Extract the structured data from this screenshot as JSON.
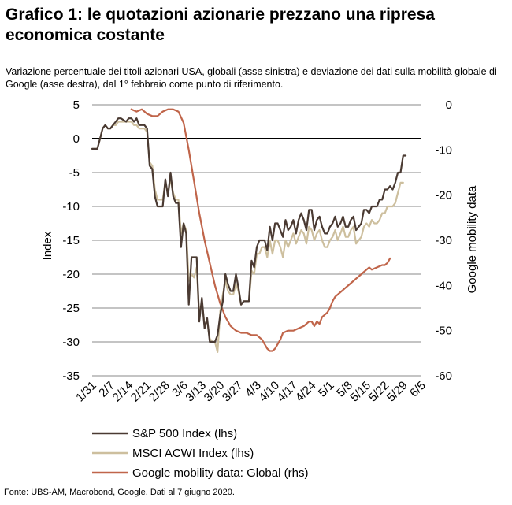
{
  "title": "Grafico 1: le quotazioni azionarie prezzano una ripresa economica costante",
  "subtitle": "Variazione percentuale dei titoli azionari USA, globali (asse sinistra) e deviazione dei dati sulla mobilità globale di Google (asse destra), dal 1° febbraio come punto di riferimento.",
  "source": "Fonte: UBS-AM, Macrobond, Google. Dati al 7 giugno 2020.",
  "chart_data": {
    "type": "line",
    "ylabel": "Index",
    "y2label": "Google mobility data",
    "ylim": [
      -35,
      5
    ],
    "y2lim": [
      -60,
      0
    ],
    "yticks": [
      "5",
      "0",
      "-5",
      "-10",
      "-15",
      "-20",
      "-25",
      "-30",
      "-35"
    ],
    "y2ticks": [
      "0",
      "-10",
      "-20",
      "-30",
      "-40",
      "-50",
      "-60"
    ],
    "xlim": [
      0,
      126
    ],
    "xticks": [
      {
        "label": "1/31",
        "day": 0
      },
      {
        "label": "2/7",
        "day": 7
      },
      {
        "label": "2/14",
        "day": 14
      },
      {
        "label": "2/21",
        "day": 21
      },
      {
        "label": "2/28",
        "day": 28
      },
      {
        "label": "3/6",
        "day": 35
      },
      {
        "label": "3/13",
        "day": 42
      },
      {
        "label": "3/20",
        "day": 49
      },
      {
        "label": "3/27",
        "day": 56
      },
      {
        "label": "4/3",
        "day": 63
      },
      {
        "label": "4/10",
        "day": 70
      },
      {
        "label": "4/17",
        "day": 77
      },
      {
        "label": "4/24",
        "day": 84
      },
      {
        "label": "5/1",
        "day": 91
      },
      {
        "label": "5/8",
        "day": 98
      },
      {
        "label": "5/15",
        "day": 105
      },
      {
        "label": "5/22",
        "day": 112
      },
      {
        "label": "5/29",
        "day": 119
      },
      {
        "label": "6/5",
        "day": 126
      }
    ],
    "grid": true,
    "legend": "bottom",
    "series": [
      {
        "name": "S&P 500 Index (lhs)",
        "axis": "left",
        "color": "#4a3a32",
        "points": [
          [
            0,
            -1.5
          ],
          [
            2,
            -1.5
          ],
          [
            3,
            0
          ],
          [
            4,
            1.5
          ],
          [
            5,
            2
          ],
          [
            6,
            1.5
          ],
          [
            7,
            1.5
          ],
          [
            8,
            2
          ],
          [
            9,
            2.5
          ],
          [
            10,
            3
          ],
          [
            11,
            3
          ],
          [
            13,
            2.5
          ],
          [
            14,
            3
          ],
          [
            15,
            3
          ],
          [
            16,
            2.5
          ],
          [
            17,
            3
          ],
          [
            18,
            2
          ],
          [
            20,
            2
          ],
          [
            21,
            1.5
          ],
          [
            22,
            -4
          ],
          [
            23,
            -4.5
          ],
          [
            24,
            -8.5
          ],
          [
            25,
            -10
          ],
          [
            27,
            -10
          ],
          [
            28,
            -6
          ],
          [
            29,
            -8.5
          ],
          [
            30,
            -5
          ],
          [
            31,
            -8.5
          ],
          [
            32,
            -9.5
          ],
          [
            33,
            -9.5
          ],
          [
            34,
            -16
          ],
          [
            35,
            -12.5
          ],
          [
            36,
            -14
          ],
          [
            37,
            -24.5
          ],
          [
            38,
            -17.5
          ],
          [
            40,
            -17.5
          ],
          [
            41,
            -27
          ],
          [
            42,
            -23.5
          ],
          [
            43,
            -28
          ],
          [
            44,
            -26.5
          ],
          [
            45,
            -30
          ],
          [
            47,
            -30
          ],
          [
            48,
            -29
          ],
          [
            49,
            -26
          ],
          [
            50,
            -24
          ],
          [
            51,
            -20
          ],
          [
            52,
            -21.5
          ],
          [
            53,
            -22.5
          ],
          [
            54,
            -22.5
          ],
          [
            55,
            -20
          ],
          [
            56,
            -22
          ],
          [
            57,
            -24.5
          ],
          [
            58,
            -24
          ],
          [
            59,
            -24
          ],
          [
            60,
            -24
          ],
          [
            61,
            -18
          ],
          [
            62,
            -19
          ],
          [
            63,
            -16
          ],
          [
            64,
            -15
          ],
          [
            66,
            -15
          ],
          [
            67,
            -16.5
          ],
          [
            68,
            -13
          ],
          [
            69,
            -15
          ],
          [
            70,
            -12.5
          ],
          [
            71,
            -12.5
          ],
          [
            72,
            -13.5
          ],
          [
            73,
            -14.5
          ],
          [
            74,
            -12
          ],
          [
            75,
            -13.5
          ],
          [
            76,
            -13
          ],
          [
            77,
            -12
          ],
          [
            78,
            -14
          ],
          [
            79,
            -12
          ],
          [
            80,
            -11
          ],
          [
            81,
            -12
          ],
          [
            82,
            -13.5
          ],
          [
            83,
            -10.5
          ],
          [
            84,
            -10.5
          ],
          [
            85,
            -13.5
          ],
          [
            86,
            -12
          ],
          [
            87,
            -11.5
          ],
          [
            88,
            -13
          ],
          [
            89,
            -14
          ],
          [
            90,
            -14
          ],
          [
            91,
            -13
          ],
          [
            92,
            -12.5
          ],
          [
            93,
            -11.5
          ],
          [
            94,
            -13
          ],
          [
            95,
            -12.5
          ],
          [
            96,
            -11.5
          ],
          [
            97,
            -13
          ],
          [
            98,
            -13
          ],
          [
            99,
            -12
          ],
          [
            100,
            -11.5
          ],
          [
            101,
            -13.5
          ],
          [
            102,
            -13
          ],
          [
            103,
            -12.5
          ],
          [
            104,
            -10.5
          ],
          [
            105,
            -10.5
          ],
          [
            106,
            -11
          ],
          [
            107,
            -10
          ],
          [
            108,
            -10
          ],
          [
            109,
            -10
          ],
          [
            110,
            -9
          ],
          [
            111,
            -9
          ],
          [
            112,
            -7.5
          ],
          [
            113,
            -7.5
          ],
          [
            114,
            -7
          ],
          [
            115,
            -7.5
          ],
          [
            116,
            -6.5
          ],
          [
            117,
            -5
          ],
          [
            118,
            -5
          ],
          [
            119,
            -2.5
          ],
          [
            120,
            -2.5
          ]
        ]
      },
      {
        "name": "MSCI ACWI Index (lhs)",
        "axis": "left",
        "color": "#cdbf9e",
        "points": [
          [
            0,
            -1.5
          ],
          [
            2,
            -1.5
          ],
          [
            3,
            0
          ],
          [
            4,
            1.5
          ],
          [
            5,
            2
          ],
          [
            6,
            1.5
          ],
          [
            7,
            1.5
          ],
          [
            8,
            2
          ],
          [
            9,
            2
          ],
          [
            10,
            2.5
          ],
          [
            11,
            2.5
          ],
          [
            13,
            2.5
          ],
          [
            14,
            2.5
          ],
          [
            15,
            2.5
          ],
          [
            16,
            2
          ],
          [
            17,
            2
          ],
          [
            18,
            1.5
          ],
          [
            20,
            1.5
          ],
          [
            21,
            1
          ],
          [
            22,
            -3.5
          ],
          [
            23,
            -4
          ],
          [
            24,
            -7.5
          ],
          [
            25,
            -9
          ],
          [
            27,
            -9
          ],
          [
            28,
            -6.5
          ],
          [
            29,
            -8
          ],
          [
            30,
            -6
          ],
          [
            31,
            -8
          ],
          [
            32,
            -9
          ],
          [
            33,
            -9
          ],
          [
            34,
            -14
          ],
          [
            35,
            -12.5
          ],
          [
            36,
            -13.5
          ],
          [
            37,
            -21
          ],
          [
            38,
            -20
          ],
          [
            39,
            -20.5
          ],
          [
            40,
            -19
          ],
          [
            41,
            -26
          ],
          [
            42,
            -24
          ],
          [
            43,
            -27.5
          ],
          [
            44,
            -27
          ],
          [
            45,
            -29.5
          ],
          [
            46,
            -30
          ],
          [
            47,
            -30
          ],
          [
            48,
            -31.5
          ],
          [
            49,
            -25.5
          ],
          [
            50,
            -23
          ],
          [
            51,
            -21
          ],
          [
            52,
            -22.5
          ],
          [
            53,
            -23
          ],
          [
            54,
            -23
          ],
          [
            55,
            -21.5
          ],
          [
            56,
            -22.5
          ],
          [
            57,
            -24.5
          ],
          [
            58,
            -24
          ],
          [
            59,
            -24
          ],
          [
            60,
            -24
          ],
          [
            61,
            -19.5
          ],
          [
            62,
            -20
          ],
          [
            63,
            -17
          ],
          [
            64,
            -17
          ],
          [
            65,
            -16
          ],
          [
            66,
            -16
          ],
          [
            67,
            -17.5
          ],
          [
            68,
            -15
          ],
          [
            69,
            -17
          ],
          [
            70,
            -15
          ],
          [
            71,
            -15
          ],
          [
            72,
            -16
          ],
          [
            73,
            -17.5
          ],
          [
            74,
            -15
          ],
          [
            75,
            -16
          ],
          [
            76,
            -15
          ],
          [
            77,
            -14
          ],
          [
            78,
            -15.5
          ],
          [
            79,
            -14.5
          ],
          [
            80,
            -13.5
          ],
          [
            81,
            -14
          ],
          [
            82,
            -15.5
          ],
          [
            83,
            -13
          ],
          [
            84,
            -13.5
          ],
          [
            85,
            -15
          ],
          [
            86,
            -14
          ],
          [
            87,
            -13.5
          ],
          [
            88,
            -15
          ],
          [
            89,
            -16
          ],
          [
            90,
            -16
          ],
          [
            91,
            -15
          ],
          [
            92,
            -14.5
          ],
          [
            93,
            -13.5
          ],
          [
            94,
            -15
          ],
          [
            95,
            -14
          ],
          [
            96,
            -13
          ],
          [
            97,
            -14.5
          ],
          [
            98,
            -14.5
          ],
          [
            99,
            -13.5
          ],
          [
            100,
            -13
          ],
          [
            101,
            -15.5
          ],
          [
            102,
            -15
          ],
          [
            103,
            -14.5
          ],
          [
            104,
            -13
          ],
          [
            105,
            -12.5
          ],
          [
            106,
            -13
          ],
          [
            107,
            -12
          ],
          [
            108,
            -12.5
          ],
          [
            109,
            -12.5
          ],
          [
            110,
            -12
          ],
          [
            111,
            -11
          ],
          [
            112,
            -11
          ],
          [
            113,
            -10
          ],
          [
            114,
            -10
          ],
          [
            115,
            -10
          ],
          [
            116,
            -9.5
          ],
          [
            117,
            -8
          ],
          [
            118,
            -6.5
          ],
          [
            119,
            -6.5
          ]
        ]
      },
      {
        "name": "Google mobility data: Global (rhs)",
        "axis": "right",
        "color": "#c0654a",
        "points": [
          [
            15,
            -1
          ],
          [
            17,
            -1.5
          ],
          [
            19,
            -1
          ],
          [
            21,
            -2
          ],
          [
            23,
            -2.5
          ],
          [
            25,
            -2.5
          ],
          [
            27,
            -1.5
          ],
          [
            29,
            -1
          ],
          [
            31,
            -1
          ],
          [
            33,
            -1.5
          ],
          [
            35,
            -4
          ],
          [
            37,
            -10
          ],
          [
            39,
            -17
          ],
          [
            41,
            -24
          ],
          [
            43,
            -30
          ],
          [
            45,
            -35
          ],
          [
            47,
            -40
          ],
          [
            49,
            -44
          ],
          [
            51,
            -47
          ],
          [
            53,
            -49
          ],
          [
            55,
            -50
          ],
          [
            57,
            -50.5
          ],
          [
            59,
            -50.5
          ],
          [
            61,
            -51
          ],
          [
            63,
            -51
          ],
          [
            65,
            -52
          ],
          [
            67,
            -54
          ],
          [
            68,
            -54.5
          ],
          [
            69,
            -54.5
          ],
          [
            70,
            -54
          ],
          [
            71,
            -53
          ],
          [
            72,
            -52
          ],
          [
            73,
            -50.5
          ],
          [
            75,
            -50
          ],
          [
            77,
            -50
          ],
          [
            79,
            -49.5
          ],
          [
            81,
            -49
          ],
          [
            83,
            -48
          ],
          [
            84,
            -48
          ],
          [
            85,
            -49
          ],
          [
            86,
            -48
          ],
          [
            87,
            -48.5
          ],
          [
            88,
            -47
          ],
          [
            89,
            -46.5
          ],
          [
            90,
            -46
          ],
          [
            91,
            -45
          ],
          [
            92,
            -43.5
          ],
          [
            93,
            -42.5
          ],
          [
            95,
            -41.5
          ],
          [
            97,
            -40.5
          ],
          [
            99,
            -39.5
          ],
          [
            101,
            -38.5
          ],
          [
            103,
            -37.5
          ],
          [
            105,
            -36.5
          ],
          [
            106,
            -36
          ],
          [
            107,
            -36.5
          ],
          [
            109,
            -36
          ],
          [
            111,
            -35.5
          ],
          [
            112,
            -35.5
          ],
          [
            113,
            -35
          ],
          [
            114,
            -34
          ]
        ]
      }
    ]
  }
}
